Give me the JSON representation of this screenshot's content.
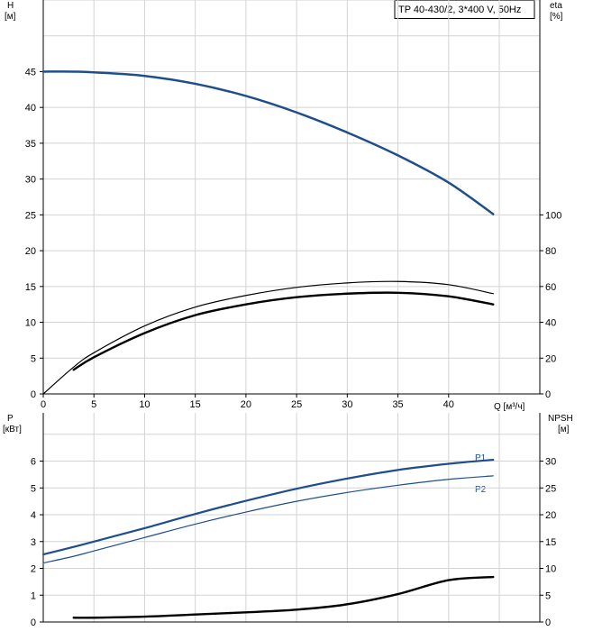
{
  "chart_data": [
    {
      "type": "line",
      "title": "TP 40-430/2, 3*400 V, 50Hz",
      "xlabel": "Q [м³/ч]",
      "x_ticks": [
        "0",
        "5",
        "10",
        "15",
        "20",
        "25",
        "30",
        "35",
        "40"
      ],
      "left_axis": {
        "label_top": "H",
        "label_unit": "[м]",
        "ylim": [
          0,
          55
        ],
        "ticks": [
          0,
          5,
          10,
          15,
          20,
          25,
          30,
          35,
          40,
          45
        ]
      },
      "right_axis": {
        "label_top": "eta",
        "label_unit": "[%]",
        "ylim": [
          0,
          220
        ],
        "ticks": [
          0,
          20,
          40,
          60,
          80,
          100
        ]
      },
      "xlim": [
        0,
        49
      ],
      "grid": true,
      "series": [
        {
          "axis": "left",
          "color": "#1f4e8c",
          "width": 2.5,
          "x": [
            0,
            3,
            5,
            10,
            15,
            20,
            25,
            30,
            35,
            40,
            44.4
          ],
          "y": [
            45,
            45,
            44.9,
            44.4,
            43.3,
            41.6,
            39.3,
            36.5,
            33.3,
            29.5,
            25.1
          ]
        },
        {
          "axis": "right",
          "color": "#000000",
          "width": 1.2,
          "x": [
            0,
            3,
            5,
            10,
            15,
            20,
            25,
            30,
            35,
            40,
            44.4
          ],
          "y": [
            0,
            15,
            23,
            38,
            48.5,
            55,
            59.5,
            62,
            62.8,
            61,
            56
          ]
        },
        {
          "axis": "right",
          "color": "#000000",
          "width": 2.4,
          "x": [
            3,
            5,
            10,
            15,
            20,
            25,
            30,
            35,
            40,
            44.4
          ],
          "y": [
            13.5,
            20.5,
            34,
            44,
            50,
            54,
            56,
            56.5,
            54.5,
            50
          ]
        }
      ]
    },
    {
      "type": "line",
      "left_axis": {
        "label_top": "P",
        "label_unit": "[кВт]",
        "ylim": [
          0,
          7.8
        ],
        "ticks": [
          0,
          1,
          2,
          3,
          4,
          5,
          6
        ]
      },
      "right_axis": {
        "label_top": "NPSH",
        "label_unit": "[м]",
        "ylim": [
          0,
          39
        ],
        "ticks": [
          0,
          5,
          10,
          15,
          20,
          25,
          30
        ]
      },
      "xlim": [
        0,
        49
      ],
      "grid": true,
      "series": [
        {
          "name": "P1",
          "axis": "left",
          "color": "#1f4e8c",
          "width": 2.2,
          "x": [
            0,
            3,
            5,
            10,
            15,
            20,
            25,
            30,
            35,
            40,
            44.4
          ],
          "y": [
            2.52,
            2.8,
            3.0,
            3.5,
            4.03,
            4.52,
            4.97,
            5.35,
            5.67,
            5.9,
            6.05
          ]
        },
        {
          "name": "P2",
          "axis": "left",
          "color": "#1f4e8c",
          "width": 1.2,
          "x": [
            0,
            3,
            5,
            10,
            15,
            20,
            25,
            30,
            35,
            40,
            44.4
          ],
          "y": [
            2.2,
            2.45,
            2.65,
            3.15,
            3.65,
            4.1,
            4.5,
            4.83,
            5.1,
            5.32,
            5.45
          ]
        },
        {
          "axis": "right",
          "color": "#000000",
          "width": 2.4,
          "x": [
            3,
            5,
            10,
            15,
            20,
            25,
            30,
            35,
            40,
            44.4
          ],
          "y": [
            0.8,
            0.8,
            1.0,
            1.4,
            1.8,
            2.3,
            3.3,
            5.2,
            7.8,
            8.4
          ]
        }
      ]
    }
  ]
}
